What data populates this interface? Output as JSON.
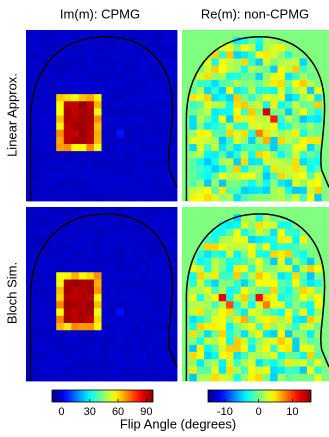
{
  "columns": [
    {
      "title": "Im(m): CPMG"
    },
    {
      "title": "Re(m): non-CPMG"
    }
  ],
  "rows": [
    {
      "label": "Linear Approx."
    },
    {
      "label": "Bloch Sim."
    }
  ],
  "colorbars": [
    {
      "lim": [
        -10,
        97
      ],
      "ticks": [
        0,
        30,
        60,
        90
      ]
    },
    {
      "lim": [
        -15,
        15.5
      ],
      "ticks": [
        -10,
        0,
        10
      ]
    }
  ],
  "colorbar_label": "Flip Angle (degrees)"
}
